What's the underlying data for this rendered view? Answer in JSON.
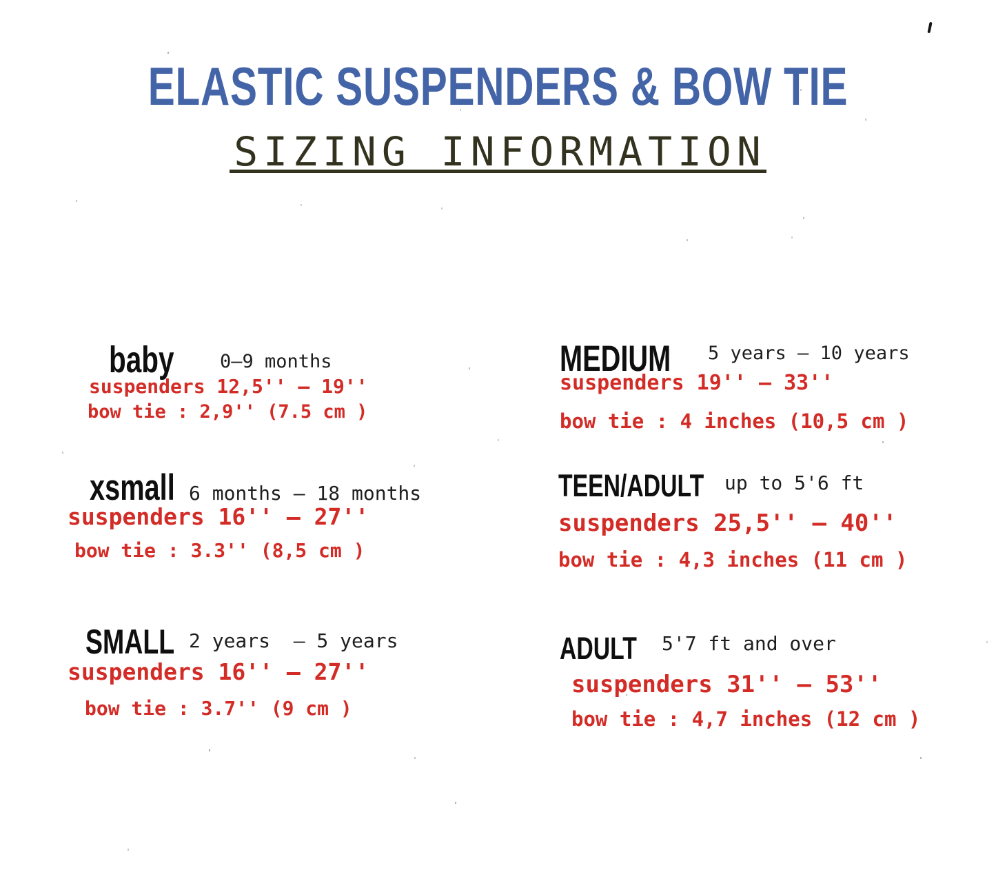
{
  "header": {
    "title": "ELASTIC SUSPENDERS & BOW TIE",
    "subtitle": "SIZING INFORMATION"
  },
  "colors": {
    "title_blue": "#4464a8",
    "subtitle_olive": "#32321f",
    "label_black": "#0f0f0f",
    "measurement_red": "#d32b26"
  },
  "sizes": [
    {
      "id": "baby",
      "label": "baby",
      "age_range": "0–9 months",
      "suspenders": "suspenders 12,5'' – 19''",
      "bow_tie": "bow tie : 2,9'' (7.5 cm )"
    },
    {
      "id": "xsmall",
      "label": "xsmall",
      "age_range": "6 months – 18 months",
      "suspenders": "suspenders 16'' – 27''",
      "bow_tie": "bow tie : 3.3'' (8,5 cm )"
    },
    {
      "id": "small",
      "label": "SMALL",
      "age_range": "2 years  – 5 years",
      "suspenders": "suspenders 16'' – 27''",
      "bow_tie": "bow tie : 3.7'' (9 cm )"
    },
    {
      "id": "medium",
      "label": "MEDIUM",
      "age_range": "5 years – 10 years",
      "suspenders": "suspenders 19'' – 33''",
      "bow_tie": "bow tie : 4 inches (10,5 cm )"
    },
    {
      "id": "teen-adult",
      "label": "TEEN/ADULT",
      "age_range": "up to 5'6 ft",
      "suspenders": "suspenders 25,5'' – 40''",
      "bow_tie": "bow tie : 4,3 inches (11 cm )"
    },
    {
      "id": "adult",
      "label": "ADULT",
      "age_range": "5'7 ft and over",
      "suspenders": "suspenders 31'' – 53''",
      "bow_tie": "bow tie : 4,7 inches (12 cm )"
    }
  ]
}
